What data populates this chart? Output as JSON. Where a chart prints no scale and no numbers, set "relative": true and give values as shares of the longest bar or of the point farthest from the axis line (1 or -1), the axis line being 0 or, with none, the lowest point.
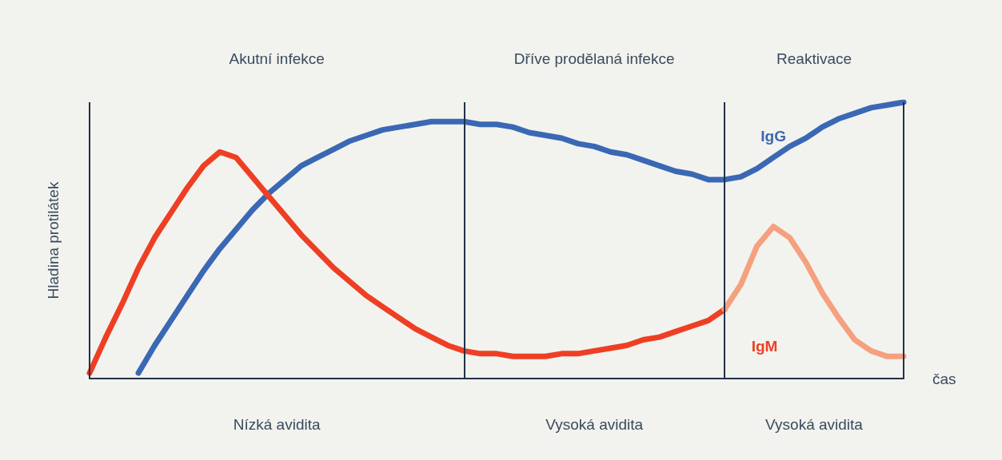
{
  "chart_data": {
    "type": "line",
    "relative": true,
    "xlabel": "čas",
    "ylabel": "Hladina protilátek",
    "grid": false,
    "legend": false,
    "marker": "none",
    "line_style": "solid",
    "categories": [
      null,
      null,
      null,
      null,
      null,
      null,
      null,
      null,
      null,
      null,
      null,
      null,
      null,
      null,
      null,
      null,
      null,
      null,
      null,
      null,
      null,
      null,
      null,
      null,
      null,
      null,
      null,
      null,
      null,
      null,
      null,
      null,
      null,
      null,
      null,
      null,
      null,
      null,
      null,
      null,
      null,
      null,
      null,
      null,
      null,
      null,
      null,
      null,
      null,
      null,
      null
    ],
    "series": [
      {
        "name": "IgG",
        "color": "#3a68b4",
        "values": [
          null,
          null,
          null,
          0.02,
          0.12,
          0.21,
          0.3,
          0.39,
          0.47,
          0.54,
          0.61,
          0.67,
          0.72,
          0.77,
          0.8,
          0.83,
          0.86,
          0.88,
          0.9,
          0.91,
          0.92,
          0.93,
          0.93,
          0.93,
          0.92,
          0.92,
          0.91,
          0.89,
          0.88,
          0.87,
          0.85,
          0.84,
          0.82,
          0.81,
          0.79,
          0.77,
          0.75,
          0.74,
          0.72,
          0.72,
          0.73,
          0.76,
          0.8,
          0.84,
          0.87,
          0.91,
          0.94,
          0.96,
          0.98,
          0.99,
          1.0
        ]
      },
      {
        "name": "IgM",
        "color": "#ee3f24",
        "values": [
          0.02,
          0.15,
          0.27,
          0.4,
          0.51,
          0.6,
          0.69,
          0.77,
          0.82,
          0.8,
          0.73,
          0.66,
          0.59,
          0.52,
          0.46,
          0.4,
          0.35,
          0.3,
          0.26,
          0.22,
          0.18,
          0.15,
          0.12,
          0.1,
          0.09,
          0.09,
          0.08,
          0.08,
          0.08,
          0.09,
          0.09,
          0.1,
          0.11,
          0.12,
          0.14,
          0.15,
          0.17,
          0.19,
          0.21,
          0.25,
          null,
          null,
          null,
          null,
          null,
          null,
          null,
          null,
          null,
          null,
          null
        ]
      },
      {
        "color": "#f5a07f",
        "values": [
          null,
          null,
          null,
          null,
          null,
          null,
          null,
          null,
          null,
          null,
          null,
          null,
          null,
          null,
          null,
          null,
          null,
          null,
          null,
          null,
          null,
          null,
          null,
          null,
          null,
          null,
          null,
          null,
          null,
          null,
          null,
          null,
          null,
          null,
          null,
          null,
          null,
          null,
          null,
          0.25,
          0.34,
          0.48,
          0.55,
          0.51,
          0.42,
          0.31,
          0.22,
          0.14,
          0.1,
          0.08,
          0.08
        ]
      }
    ],
    "annotations": [
      "Akutní infekce",
      "Dříve prodělaná infekce",
      "Reaktivace",
      "Nízká avidita",
      "Vysoká avidita",
      "Vysoká avidita"
    ]
  }
}
